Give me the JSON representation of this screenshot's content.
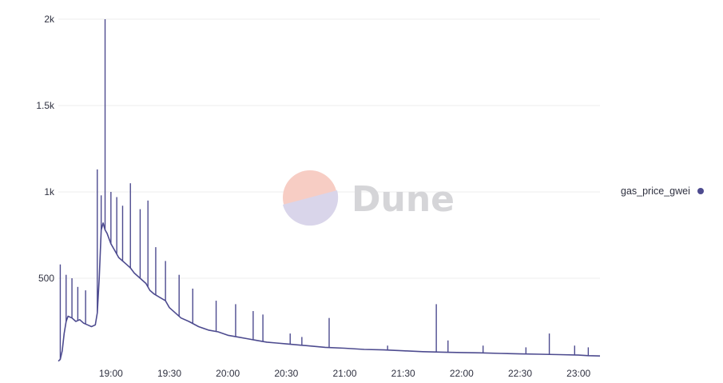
{
  "colors": {
    "series": "#4d4b8f",
    "grid": "#ececec",
    "axis_text": "#2f3140",
    "watermark_text": "#d5d5d8",
    "watermark_pink": "#f7cdc4",
    "watermark_lavender": "#d9d5ea"
  },
  "watermark": {
    "text": "Dune"
  },
  "chart_data": {
    "type": "line",
    "title": "",
    "xlabel": "",
    "ylabel": "",
    "ylim": [
      0,
      2000
    ],
    "y_ticks": [
      {
        "value": 500,
        "label": "500"
      },
      {
        "value": 1000,
        "label": "1k"
      },
      {
        "value": 1500,
        "label": "1.5k"
      },
      {
        "value": 2000,
        "label": "2k"
      }
    ],
    "x_ticks": [
      "19:00",
      "19:30",
      "20:00",
      "20:30",
      "21:00",
      "21:30",
      "22:00",
      "22:30",
      "23:00"
    ],
    "x_range": [
      "18:33",
      "23:11"
    ],
    "grid": true,
    "legend_position": "right",
    "series": [
      {
        "name": "gas_price_gwei",
        "x": [
          "18:33",
          "18:34",
          "18:35",
          "18:36",
          "18:37",
          "18:38",
          "18:40",
          "18:42",
          "18:44",
          "18:46",
          "18:48",
          "18:50",
          "18:52",
          "18:53",
          "18:54",
          "18:55",
          "18:56",
          "18:57",
          "18:58",
          "19:00",
          "19:02",
          "19:04",
          "19:06",
          "19:08",
          "19:10",
          "19:12",
          "19:15",
          "19:18",
          "19:20",
          "19:22",
          "19:25",
          "19:28",
          "19:30",
          "19:33",
          "19:36",
          "19:40",
          "19:45",
          "19:50",
          "19:55",
          "20:00",
          "20:05",
          "20:10",
          "20:15",
          "20:20",
          "20:25",
          "20:30",
          "20:40",
          "20:50",
          "21:00",
          "21:10",
          "21:20",
          "21:30",
          "21:40",
          "21:50",
          "22:00",
          "22:10",
          "22:20",
          "22:30",
          "22:40",
          "22:50",
          "23:00",
          "23:05",
          "23:11"
        ],
        "values": [
          20,
          30,
          80,
          180,
          250,
          280,
          270,
          250,
          260,
          240,
          230,
          220,
          230,
          300,
          500,
          780,
          820,
          780,
          760,
          700,
          660,
          620,
          600,
          580,
          560,
          530,
          500,
          470,
          430,
          410,
          390,
          370,
          330,
          300,
          270,
          250,
          220,
          200,
          190,
          170,
          160,
          150,
          140,
          130,
          125,
          120,
          110,
          100,
          95,
          88,
          85,
          80,
          75,
          72,
          70,
          68,
          65,
          62,
          60,
          58,
          55,
          52,
          50
        ]
      }
    ],
    "spikes": [
      {
        "x": "18:34",
        "value": 580
      },
      {
        "x": "18:37",
        "value": 520
      },
      {
        "x": "18:40",
        "value": 500
      },
      {
        "x": "18:43",
        "value": 450
      },
      {
        "x": "18:47",
        "value": 430
      },
      {
        "x": "18:53",
        "value": 1130
      },
      {
        "x": "18:55",
        "value": 980
      },
      {
        "x": "18:57",
        "value": 2000
      },
      {
        "x": "19:00",
        "value": 1000
      },
      {
        "x": "19:03",
        "value": 970
      },
      {
        "x": "19:06",
        "value": 920
      },
      {
        "x": "19:10",
        "value": 1050
      },
      {
        "x": "19:15",
        "value": 900
      },
      {
        "x": "19:19",
        "value": 950
      },
      {
        "x": "19:23",
        "value": 680
      },
      {
        "x": "19:28",
        "value": 600
      },
      {
        "x": "19:35",
        "value": 520
      },
      {
        "x": "19:42",
        "value": 440
      },
      {
        "x": "19:54",
        "value": 370
      },
      {
        "x": "20:04",
        "value": 350
      },
      {
        "x": "20:13",
        "value": 310
      },
      {
        "x": "20:18",
        "value": 290
      },
      {
        "x": "20:32",
        "value": 180
      },
      {
        "x": "20:38",
        "value": 160
      },
      {
        "x": "20:52",
        "value": 270
      },
      {
        "x": "21:22",
        "value": 110
      },
      {
        "x": "21:47",
        "value": 350
      },
      {
        "x": "21:53",
        "value": 140
      },
      {
        "x": "22:11",
        "value": 110
      },
      {
        "x": "22:33",
        "value": 100
      },
      {
        "x": "22:45",
        "value": 180
      },
      {
        "x": "22:58",
        "value": 110
      },
      {
        "x": "23:05",
        "value": 100
      }
    ]
  }
}
